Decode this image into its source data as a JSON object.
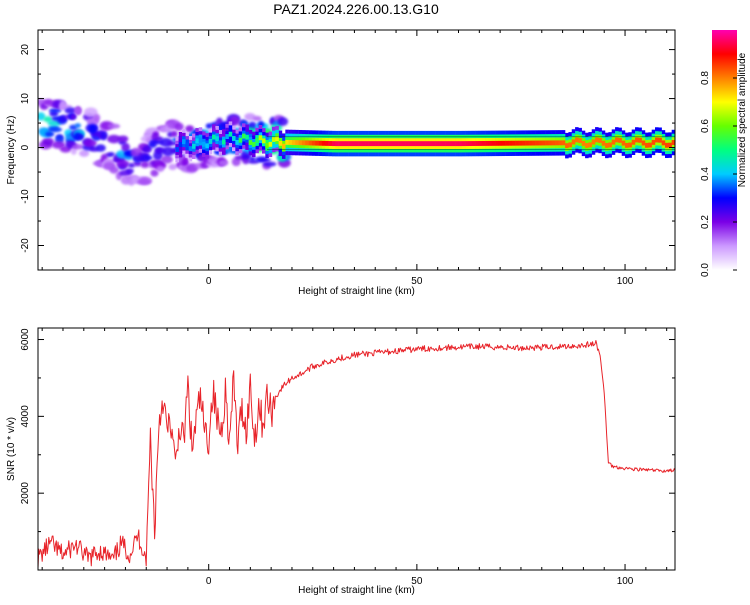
{
  "figure_title": "PAZ1.2024.226.00.13.G10",
  "chart_data": [
    {
      "type": "heatmap",
      "title": "PAZ1.2024.226.00.13.G10",
      "xlabel": "Height of straight line (km)",
      "ylabel": "Frequency (Hz)",
      "xlim": [
        -41,
        112
      ],
      "ylim": [
        -25,
        24
      ],
      "x_ticks": [
        0,
        50,
        100
      ],
      "y_ticks": [
        -20,
        -10,
        0,
        10,
        20
      ],
      "grid": false,
      "colorbar": {
        "label": "Normalized spectral amplitude",
        "range": [
          0.0,
          1.0
        ],
        "ticks": [
          0.0,
          0.2,
          0.4,
          0.6,
          0.8
        ],
        "tick_labels": [
          "0.0",
          "0.2",
          "0.4",
          "0.6",
          "0.8"
        ],
        "colormap": [
          "#ffffff",
          "#cc99ff",
          "#7b00e6",
          "#0000ff",
          "#00ccff",
          "#00ff80",
          "#66ff00",
          "#ffff00",
          "#ff8000",
          "#ff0000",
          "#ff00b0"
        ]
      },
      "description_points": [
        {
          "x": -38,
          "y": 5,
          "v": 0.45
        },
        {
          "x": -30,
          "y": 3,
          "v": 0.35
        },
        {
          "x": -25,
          "y": 1,
          "v": 0.3
        },
        {
          "x": -20,
          "y": -2,
          "v": 0.35
        },
        {
          "x": -17,
          "y": -3,
          "v": 0.3
        },
        {
          "x": -12,
          "y": 0,
          "v": 0.3
        },
        {
          "x": -5,
          "y": 0.5,
          "v": 0.4
        },
        {
          "x": 5,
          "y": 2,
          "v": 0.45
        },
        {
          "x": 12,
          "y": 1.2,
          "v": 0.6
        },
        {
          "x": 30,
          "y": 0.8,
          "v": 0.95
        },
        {
          "x": 60,
          "y": 0.8,
          "v": 0.95
        },
        {
          "x": 90,
          "y": 1.0,
          "v": 0.8
        },
        {
          "x": 110,
          "y": 1.0,
          "v": 0.85
        }
      ]
    },
    {
      "type": "line",
      "title": "",
      "xlabel": "Height of straight line (km)",
      "ylabel": "SNR (10 * v/v)",
      "xlim": [
        -41,
        112
      ],
      "ylim": [
        0,
        6300
      ],
      "x_ticks": [
        0,
        50,
        100
      ],
      "y_ticks": [
        2000,
        4000,
        6000
      ],
      "grid": false,
      "series": [
        {
          "color": "#e8242a",
          "x": [
            -41,
            -38,
            -35,
            -32,
            -29,
            -26,
            -23,
            -21,
            -19,
            -17,
            -15,
            -14,
            -13,
            -12,
            -11,
            -10,
            -9,
            -8,
            -7,
            -6,
            -5,
            -4,
            -3,
            -2,
            -1,
            0,
            1,
            2,
            3,
            4,
            5,
            6,
            7,
            8,
            9,
            10,
            11,
            12,
            13,
            14,
            15,
            16,
            18,
            20,
            22,
            25,
            28,
            31,
            35,
            40,
            45,
            50,
            55,
            60,
            65,
            70,
            75,
            80,
            85,
            90,
            93,
            94,
            95,
            96,
            97,
            98,
            100,
            103,
            106,
            109,
            112
          ],
          "y": [
            300,
            700,
            400,
            650,
            300,
            500,
            250,
            700,
            400,
            900,
            300,
            3500,
            1000,
            3800,
            4500,
            3600,
            3800,
            2600,
            3800,
            3300,
            4800,
            3100,
            3900,
            4500,
            3600,
            3400,
            4700,
            3900,
            3600,
            4700,
            3300,
            4900,
            3200,
            4300,
            3600,
            4800,
            3400,
            4300,
            3800,
            4500,
            4100,
            4500,
            4800,
            5000,
            5100,
            5300,
            5400,
            5500,
            5600,
            5650,
            5700,
            5750,
            5780,
            5800,
            5820,
            5800,
            5780,
            5800,
            5820,
            5850,
            5900,
            5600,
            4600,
            2800,
            2700,
            2680,
            2650,
            2620,
            2600,
            2580,
            2600
          ]
        }
      ]
    }
  ]
}
